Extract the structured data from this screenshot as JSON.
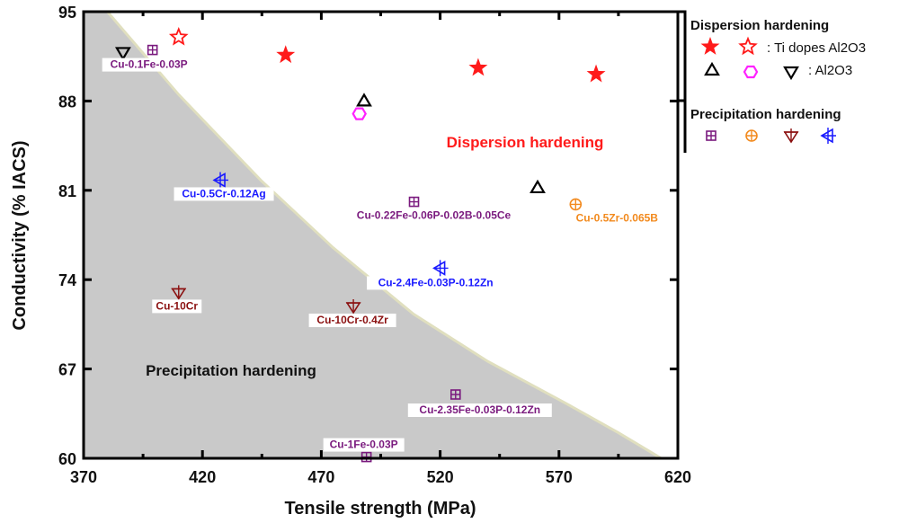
{
  "chart_data": {
    "type": "scatter",
    "xlabel": "Tensile strength (MPa)",
    "ylabel": "Conductivity (% IACS)",
    "xlim": [
      370,
      620
    ],
    "ylim": [
      60,
      95
    ],
    "xticks": [
      370,
      420,
      470,
      520,
      570,
      620
    ],
    "yticks": [
      60,
      67,
      74,
      81,
      88,
      95
    ],
    "region_labels": {
      "dispersion": "Dispersion hardening",
      "precipitation": "Precipitation hardening"
    },
    "boundary_curve": [
      [
        380,
        95
      ],
      [
        410,
        88.5
      ],
      [
        444.5,
        81.8
      ],
      [
        475,
        76.5
      ],
      [
        508.8,
        71.3
      ],
      [
        540,
        67.6
      ],
      [
        572,
        64.4
      ],
      [
        595,
        62
      ],
      [
        613,
        60
      ]
    ],
    "colors": {
      "red": "#ff1a1a",
      "black": "#000000",
      "magenta": "#ff22ff",
      "purple": "#7a1a7e",
      "orange": "#f28a1e",
      "darkred": "#8b1111",
      "blue": "#1a1aff",
      "shade": "#c9c9c9",
      "edge": "#e0dfbf"
    },
    "points": [
      {
        "marker": "star-filled",
        "x": 455,
        "y": 91.6,
        "label": ""
      },
      {
        "marker": "star-filled",
        "x": 536,
        "y": 90.6,
        "label": ""
      },
      {
        "marker": "star-filled",
        "x": 585.6,
        "y": 90.1,
        "label": ""
      },
      {
        "marker": "star-open",
        "x": 410,
        "y": 93.0,
        "label": ""
      },
      {
        "marker": "triangle-up",
        "x": 488,
        "y": 88.0,
        "label": ""
      },
      {
        "marker": "triangle-up",
        "x": 561,
        "y": 81.2,
        "label": ""
      },
      {
        "marker": "hexagon",
        "x": 486,
        "y": 87.0,
        "label": ""
      },
      {
        "marker": "triangle-down",
        "x": 386.6,
        "y": 91.8,
        "label": ""
      },
      {
        "marker": "square-cross",
        "x": 399,
        "y": 92.0,
        "label": "Cu-0.1Fe-0.03P"
      },
      {
        "marker": "triangle-left",
        "x": 427.5,
        "y": 81.8,
        "label": "Cu-0.5Cr-0.12Ag"
      },
      {
        "marker": "square-cross",
        "x": 509,
        "y": 80.1,
        "label": "Cu-0.22Fe-0.06P-0.02B-0.05Ce"
      },
      {
        "marker": "circle-cross",
        "x": 577,
        "y": 79.9,
        "label": "Cu-0.5Zr-0.065B"
      },
      {
        "marker": "triangle-left",
        "x": 520,
        "y": 74.9,
        "label": "Cu-2.4Fe-0.03P-0.12Zn"
      },
      {
        "marker": "triangle-down-cross",
        "x": 410,
        "y": 73.0,
        "label": "Cu-10Cr"
      },
      {
        "marker": "triangle-down-cross",
        "x": 483.5,
        "y": 71.9,
        "label": "Cu-10Cr-0.4Zr"
      },
      {
        "marker": "square-cross",
        "x": 526.5,
        "y": 65.0,
        "label": "Cu-2.35Fe-0.03P-0.12Zn"
      },
      {
        "marker": "square-cross",
        "x": 489,
        "y": 60.1,
        "label": "Cu-1Fe-0.03P"
      }
    ],
    "legend": {
      "placement": "right",
      "dispersion_title": "Dispersion hardening",
      "ti_label": ": Ti dopes Al2O3",
      "al_label": ": Al2O3",
      "precipitation_title": "Precipitation hardening"
    }
  }
}
